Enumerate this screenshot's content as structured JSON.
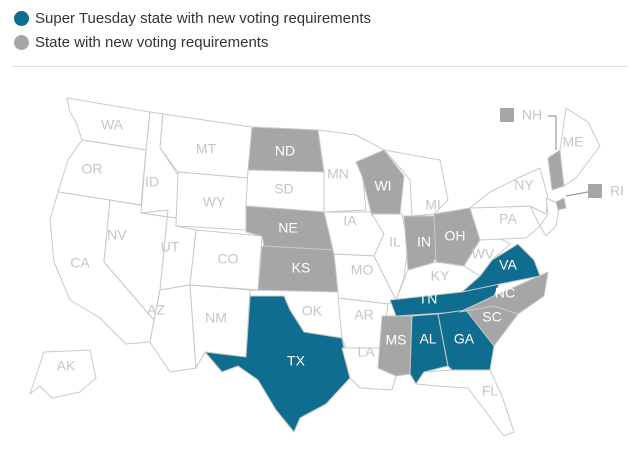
{
  "colors": {
    "super_tuesday": "#0f6e8f",
    "new_requirements": "#a6a6a6",
    "other": "#ffffff",
    "border": "#c8c8c8"
  },
  "legend": {
    "super_tuesday_label": "Super Tuesday state with new voting requirements",
    "new_requirements_label": "State with new voting requirements"
  },
  "states": {
    "WA": {
      "label": "WA",
      "category": "other"
    },
    "OR": {
      "label": "OR",
      "category": "other"
    },
    "CA": {
      "label": "CA",
      "category": "other"
    },
    "NV": {
      "label": "NV",
      "category": "other"
    },
    "ID": {
      "label": "ID",
      "category": "other"
    },
    "MT": {
      "label": "MT",
      "category": "other"
    },
    "WY": {
      "label": "WY",
      "category": "other"
    },
    "UT": {
      "label": "UT",
      "category": "other"
    },
    "CO": {
      "label": "CO",
      "category": "other"
    },
    "AZ": {
      "label": "AZ",
      "category": "other"
    },
    "NM": {
      "label": "NM",
      "category": "other"
    },
    "ND": {
      "label": "ND",
      "category": "new_requirements"
    },
    "SD": {
      "label": "SD",
      "category": "other"
    },
    "NE": {
      "label": "NE",
      "category": "new_requirements"
    },
    "KS": {
      "label": "KS",
      "category": "new_requirements"
    },
    "OK": {
      "label": "OK",
      "category": "other"
    },
    "TX": {
      "label": "TX",
      "category": "super_tuesday"
    },
    "MN": {
      "label": "MN",
      "category": "other"
    },
    "IA": {
      "label": "IA",
      "category": "other"
    },
    "MO": {
      "label": "MO",
      "category": "other"
    },
    "AR": {
      "label": "AR",
      "category": "other"
    },
    "LA": {
      "label": "LA",
      "category": "other"
    },
    "WI": {
      "label": "WI",
      "category": "new_requirements"
    },
    "IL": {
      "label": "IL",
      "category": "other"
    },
    "MI": {
      "label": "MI",
      "category": "other"
    },
    "IN": {
      "label": "IN",
      "category": "new_requirements"
    },
    "OH": {
      "label": "OH",
      "category": "new_requirements"
    },
    "KY": {
      "label": "KY",
      "category": "other"
    },
    "TN": {
      "label": "TN",
      "category": "super_tuesday"
    },
    "MS": {
      "label": "MS",
      "category": "new_requirements"
    },
    "AL": {
      "label": "AL",
      "category": "super_tuesday"
    },
    "GA": {
      "label": "GA",
      "category": "super_tuesday"
    },
    "FL": {
      "label": "FL",
      "category": "other"
    },
    "SC": {
      "label": "SC",
      "category": "new_requirements"
    },
    "NC": {
      "label": "NC",
      "category": "new_requirements"
    },
    "VA": {
      "label": "VA",
      "category": "super_tuesday"
    },
    "WV": {
      "label": "WV",
      "category": "other"
    },
    "PA": {
      "label": "PA",
      "category": "other"
    },
    "NY": {
      "label": "NY",
      "category": "other"
    },
    "ME": {
      "label": "ME",
      "category": "other"
    },
    "NH": {
      "label": "NH",
      "category": "new_requirements"
    },
    "RI": {
      "label": "RI",
      "category": "new_requirements"
    },
    "AK": {
      "label": "AK",
      "category": "other"
    }
  }
}
